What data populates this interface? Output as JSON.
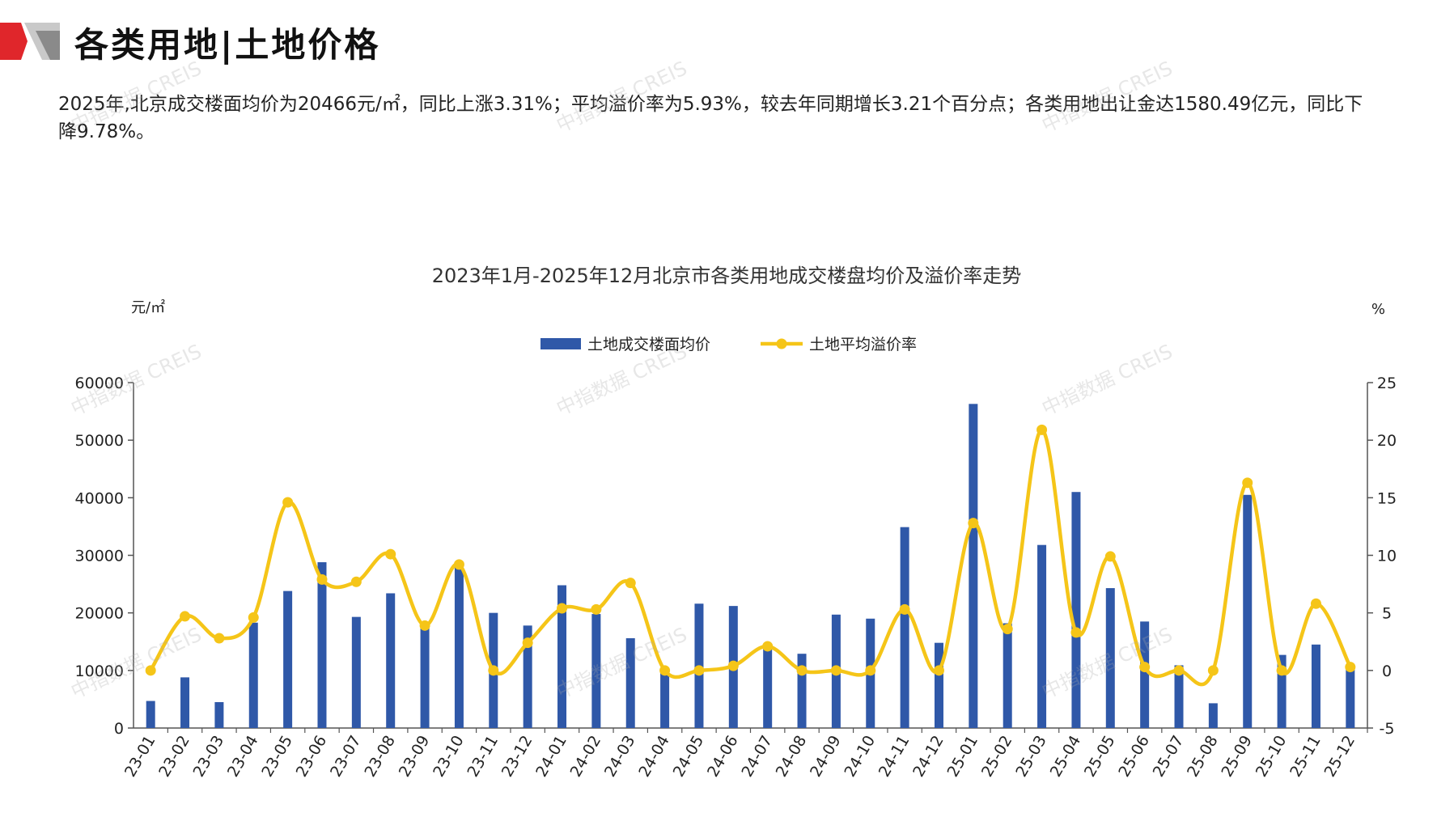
{
  "page": {
    "title": "各类用地|土地价格",
    "summary": "2025年,北京成交楼面均价为20466元/㎡，同比上涨3.31%；平均溢价率为5.93%，较去年同期增长3.21个百分点；各类用地出让金达1580.49亿元，同比下降9.78%。",
    "watermark": "中指数据 CREIS"
  },
  "colors": {
    "bar": "#2f58a8",
    "line": "#f5c518",
    "logo_red": "#e0262b",
    "logo_gray": "#8a8a8a"
  },
  "chart_data": {
    "type": "bar",
    "title": "2023年1月-2025年12月北京市各类用地成交楼盘均价及溢价率走势",
    "ylabel_left": "元/㎡",
    "ylabel_right": "%",
    "ylim_left": [
      0,
      60000
    ],
    "ylim_right": [
      -5,
      25
    ],
    "yticks_left": [
      "0",
      "10000",
      "20000",
      "30000",
      "40000",
      "50000",
      "60000"
    ],
    "yticks_right": [
      "-5",
      "0",
      "5",
      "10",
      "15",
      "20",
      "25"
    ],
    "legend_position": "top-center",
    "grid": false,
    "categories": [
      "23-01",
      "23-02",
      "23-03",
      "23-04",
      "23-05",
      "23-06",
      "23-07",
      "23-08",
      "23-09",
      "23-10",
      "23-11",
      "23-12",
      "24-01",
      "24-02",
      "24-03",
      "24-04",
      "24-05",
      "24-06",
      "24-07",
      "24-08",
      "24-09",
      "24-10",
      "24-11",
      "24-12",
      "25-01",
      "25-02",
      "25-03",
      "25-04",
      "25-05",
      "25-06",
      "25-07",
      "25-08",
      "25-09",
      "25-10",
      "25-11",
      "25-12"
    ],
    "series": [
      {
        "name": "土地成交楼面均价",
        "type": "bar",
        "axis": "left",
        "values": [
          4700,
          8800,
          4500,
          18300,
          23800,
          28800,
          19300,
          23400,
          17600,
          28500,
          20000,
          17800,
          24800,
          19800,
          15600,
          10400,
          21600,
          21200,
          14000,
          12900,
          19700,
          19000,
          34900,
          14800,
          56300,
          18200,
          31800,
          41000,
          24300,
          18500,
          10900,
          4300,
          40500,
          12700,
          14500,
          10900
        ]
      },
      {
        "name": "土地平均溢价率",
        "type": "line",
        "axis": "right",
        "values": [
          0.0,
          4.7,
          2.8,
          4.6,
          14.6,
          7.9,
          7.7,
          10.1,
          3.9,
          9.2,
          0.0,
          2.4,
          5.4,
          5.3,
          7.6,
          0.0,
          0.0,
          0.4,
          2.1,
          0.0,
          0.0,
          0.0,
          5.3,
          0.0,
          12.8,
          3.6,
          20.9,
          3.3,
          9.9,
          0.3,
          0.0,
          0.0,
          16.3,
          0.0,
          5.8,
          0.3
        ]
      }
    ]
  }
}
